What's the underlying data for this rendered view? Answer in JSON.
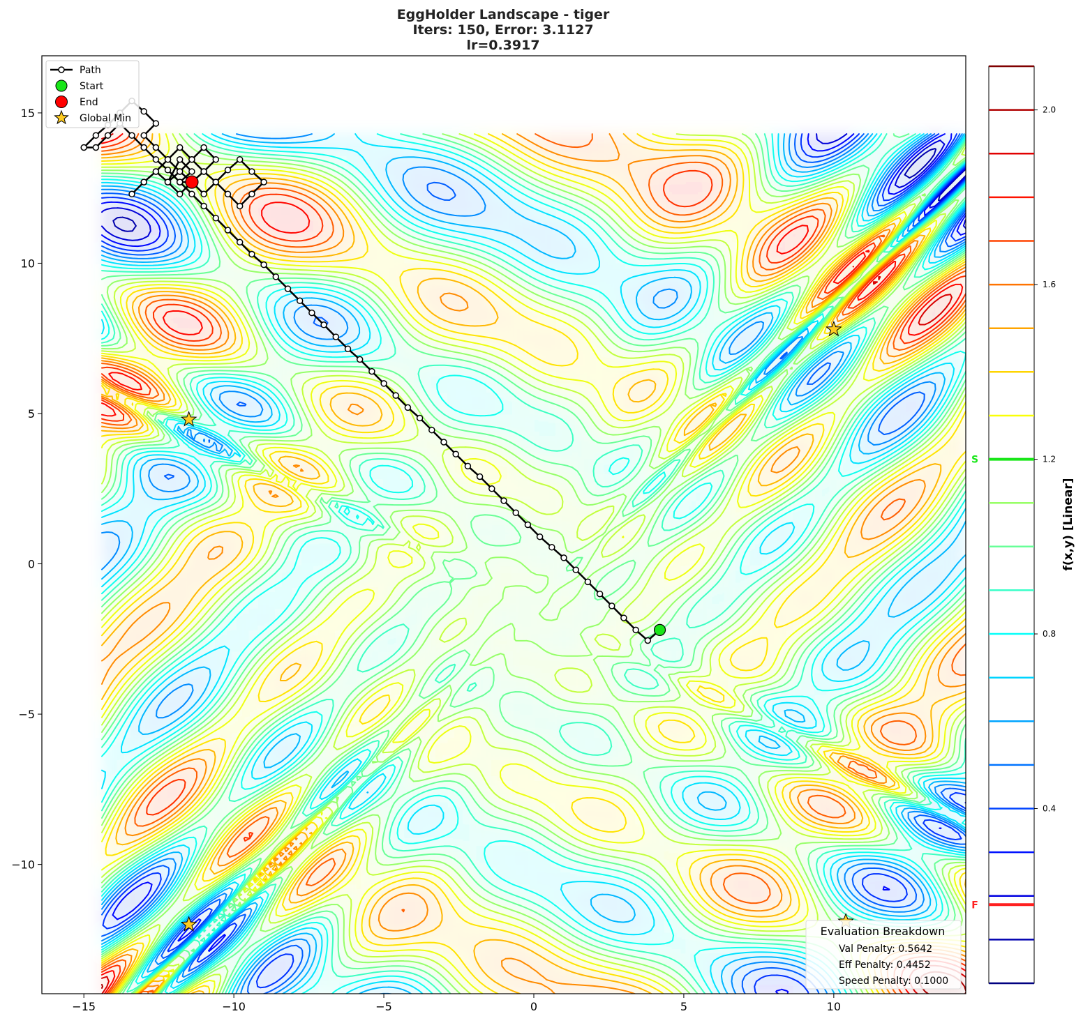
{
  "chart_data": {
    "type": "contour",
    "title_lines": [
      "EggHolder Landscape - tiger",
      "Iters: 150, Error: 3.1127",
      "lr=0.3917"
    ],
    "xlim": [
      -16.4,
      14.4
    ],
    "ylim": [
      -14.3,
      16.9
    ],
    "x_ticks": [
      -15,
      -10,
      -5,
      0,
      5,
      10
    ],
    "y_ticks": [
      -10,
      -5,
      0,
      5,
      10,
      15
    ],
    "x_tick_labels": [
      "−15",
      "−10",
      "−5",
      "0",
      "5",
      "10"
    ],
    "y_tick_labels": [
      "−10",
      "−5",
      "0",
      "5",
      "10",
      "15"
    ],
    "landscape_extent": {
      "x": [
        -14.4,
        14.4
      ],
      "y": [
        -14.4,
        14.3
      ]
    },
    "legend": {
      "placement": "upper-left",
      "entries": [
        {
          "key": "path",
          "label": "Path"
        },
        {
          "key": "start",
          "label": "Start"
        },
        {
          "key": "end",
          "label": "End"
        },
        {
          "key": "global_min",
          "label": "Global Min"
        }
      ]
    },
    "path": [
      [
        4.2,
        -2.2
      ],
      [
        3.8,
        -2.55
      ],
      [
        3.4,
        -2.2
      ],
      [
        3.0,
        -1.8
      ],
      [
        2.6,
        -1.4
      ],
      [
        2.2,
        -1.0
      ],
      [
        1.8,
        -0.6
      ],
      [
        1.4,
        -0.2
      ],
      [
        1.0,
        0.2
      ],
      [
        0.6,
        0.55
      ],
      [
        0.2,
        0.9
      ],
      [
        -0.2,
        1.3
      ],
      [
        -0.6,
        1.7
      ],
      [
        -1.0,
        2.1
      ],
      [
        -1.4,
        2.5
      ],
      [
        -1.8,
        2.9
      ],
      [
        -2.2,
        3.25
      ],
      [
        -2.6,
        3.65
      ],
      [
        -3.0,
        4.05
      ],
      [
        -3.4,
        4.45
      ],
      [
        -3.8,
        4.85
      ],
      [
        -4.2,
        5.2
      ],
      [
        -4.6,
        5.6
      ],
      [
        -5.0,
        6.0
      ],
      [
        -5.4,
        6.4
      ],
      [
        -5.8,
        6.8
      ],
      [
        -6.2,
        7.15
      ],
      [
        -6.6,
        7.55
      ],
      [
        -7.0,
        7.95
      ],
      [
        -7.4,
        8.35
      ],
      [
        -7.8,
        8.75
      ],
      [
        -8.2,
        9.15
      ],
      [
        -8.6,
        9.55
      ],
      [
        -9.0,
        9.95
      ],
      [
        -9.4,
        10.3
      ],
      [
        -9.8,
        10.7
      ],
      [
        -10.2,
        11.1
      ],
      [
        -10.6,
        11.5
      ],
      [
        -11.0,
        11.9
      ],
      [
        -11.4,
        12.3
      ],
      [
        -11.8,
        12.7
      ],
      [
        -12.2,
        13.1
      ],
      [
        -12.6,
        13.45
      ],
      [
        -13.0,
        13.85
      ],
      [
        -13.4,
        14.25
      ],
      [
        -13.8,
        14.65
      ],
      [
        -14.2,
        14.25
      ],
      [
        -14.6,
        13.85
      ],
      [
        -15.0,
        13.85
      ],
      [
        -14.6,
        14.25
      ],
      [
        -14.2,
        14.6
      ],
      [
        -13.8,
        15.0
      ],
      [
        -13.4,
        15.4
      ],
      [
        -13.0,
        15.05
      ],
      [
        -12.6,
        14.65
      ],
      [
        -13.0,
        14.25
      ],
      [
        -12.6,
        13.85
      ],
      [
        -12.2,
        13.45
      ],
      [
        -11.8,
        13.05
      ],
      [
        -11.4,
        12.7
      ],
      [
        -11.0,
        12.3
      ],
      [
        -10.6,
        12.7
      ],
      [
        -10.2,
        13.1
      ],
      [
        -9.8,
        13.45
      ],
      [
        -9.4,
        13.05
      ],
      [
        -9.0,
        12.7
      ],
      [
        -9.4,
        12.3
      ],
      [
        -9.8,
        11.9
      ],
      [
        -10.2,
        12.3
      ],
      [
        -10.6,
        12.7
      ],
      [
        -11.0,
        13.05
      ],
      [
        -11.4,
        13.45
      ],
      [
        -11.8,
        13.85
      ],
      [
        -12.2,
        13.45
      ],
      [
        -12.6,
        13.05
      ],
      [
        -13.0,
        12.7
      ],
      [
        -13.4,
        12.3
      ],
      [
        -13.0,
        12.7
      ],
      [
        -12.6,
        13.05
      ],
      [
        -12.2,
        12.7
      ],
      [
        -11.8,
        12.3
      ],
      [
        -11.4,
        12.7
      ],
      [
        -11.0,
        13.05
      ],
      [
        -10.6,
        13.45
      ],
      [
        -11.0,
        13.85
      ],
      [
        -11.4,
        13.45
      ],
      [
        -11.8,
        13.05
      ],
      [
        -12.2,
        12.7
      ],
      [
        -11.8,
        13.45
      ],
      [
        -11.4,
        13.05
      ],
      [
        -11.8,
        12.7
      ],
      [
        -11.4,
        12.7
      ]
    ],
    "start": [
      4.2,
      -2.2
    ],
    "end": [
      -11.4,
      12.7
    ],
    "global_minima": [
      [
        -11.5,
        4.8
      ],
      [
        10.0,
        7.8
      ],
      [
        -11.5,
        -12.0
      ],
      [
        10.4,
        -11.9
      ]
    ],
    "colorbar": {
      "label": "f(x,y) [Linear]",
      "range": [
        0.0,
        2.1
      ],
      "ticks": [
        0.4,
        0.8,
        1.2,
        1.6,
        2.0
      ],
      "tick_labels": [
        "0.4",
        "0.8",
        "1.2",
        "1.6",
        "2.0"
      ],
      "start_marker": {
        "label": "S",
        "value": 1.2,
        "color": "#19e619"
      },
      "final_marker": {
        "label": "F",
        "value": 0.18,
        "color": "#ff2020"
      }
    },
    "evaluation_breakdown": {
      "title": "Evaluation Breakdown",
      "lines": [
        "Val Penalty: 0.5642",
        "Eff Penalty: 0.4452",
        "Speed Penalty: 0.1000"
      ]
    }
  }
}
